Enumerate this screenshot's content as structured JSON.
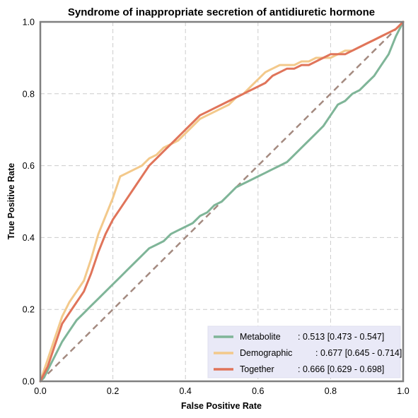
{
  "chart_data": {
    "type": "line",
    "title": "Syndrome of inappropriate secretion of antidiuretic hormone",
    "xlabel": "False Positive Rate",
    "ylabel": "True Positive Rate",
    "xlim": [
      0,
      1
    ],
    "ylim": [
      0,
      1
    ],
    "xticks": [
      "0.0",
      "0.2",
      "0.4",
      "0.6",
      "0.8",
      "1.0"
    ],
    "yticks": [
      "0.0",
      "0.2",
      "0.4",
      "0.6",
      "0.8",
      "1.0"
    ],
    "grid": true,
    "legend_position": "lower-right",
    "reference_line": {
      "x": [
        0,
        1
      ],
      "y": [
        0,
        1
      ],
      "color": "#a48a80"
    },
    "series": [
      {
        "name": "Metabolite",
        "label_suffix": ": 0.513 [0.473 - 0.547]",
        "color": "#7fb598",
        "x": [
          0.0,
          0.01,
          0.02,
          0.03,
          0.04,
          0.06,
          0.08,
          0.1,
          0.12,
          0.14,
          0.16,
          0.18,
          0.2,
          0.22,
          0.24,
          0.26,
          0.28,
          0.3,
          0.32,
          0.34,
          0.36,
          0.38,
          0.4,
          0.42,
          0.44,
          0.46,
          0.48,
          0.5,
          0.52,
          0.54,
          0.56,
          0.58,
          0.6,
          0.62,
          0.64,
          0.66,
          0.68,
          0.7,
          0.72,
          0.74,
          0.76,
          0.78,
          0.8,
          0.82,
          0.84,
          0.86,
          0.88,
          0.9,
          0.92,
          0.94,
          0.96,
          0.98,
          1.0
        ],
        "y": [
          0.0,
          0.01,
          0.03,
          0.05,
          0.07,
          0.11,
          0.14,
          0.17,
          0.19,
          0.21,
          0.23,
          0.25,
          0.27,
          0.29,
          0.31,
          0.33,
          0.35,
          0.37,
          0.38,
          0.39,
          0.41,
          0.42,
          0.43,
          0.44,
          0.46,
          0.47,
          0.49,
          0.5,
          0.52,
          0.54,
          0.55,
          0.56,
          0.57,
          0.58,
          0.59,
          0.6,
          0.61,
          0.63,
          0.65,
          0.67,
          0.69,
          0.71,
          0.74,
          0.77,
          0.78,
          0.8,
          0.81,
          0.83,
          0.85,
          0.88,
          0.91,
          0.96,
          1.0
        ]
      },
      {
        "name": "Demographic",
        "label_suffix": ": 0.677 [0.645 - 0.714]",
        "color": "#f3c98b",
        "x": [
          0.0,
          0.01,
          0.02,
          0.03,
          0.04,
          0.05,
          0.06,
          0.08,
          0.1,
          0.12,
          0.14,
          0.16,
          0.18,
          0.2,
          0.22,
          0.24,
          0.26,
          0.28,
          0.3,
          0.32,
          0.34,
          0.36,
          0.38,
          0.4,
          0.42,
          0.44,
          0.46,
          0.48,
          0.5,
          0.52,
          0.54,
          0.56,
          0.58,
          0.6,
          0.62,
          0.64,
          0.66,
          0.68,
          0.7,
          0.72,
          0.74,
          0.76,
          0.78,
          0.8,
          0.82,
          0.84,
          0.86,
          0.88,
          0.9,
          0.92,
          0.94,
          0.96,
          0.98,
          1.0
        ],
        "y": [
          0.0,
          0.03,
          0.06,
          0.09,
          0.12,
          0.15,
          0.18,
          0.22,
          0.25,
          0.28,
          0.34,
          0.41,
          0.46,
          0.51,
          0.57,
          0.58,
          0.59,
          0.6,
          0.62,
          0.63,
          0.65,
          0.66,
          0.67,
          0.69,
          0.71,
          0.73,
          0.74,
          0.75,
          0.76,
          0.77,
          0.79,
          0.8,
          0.82,
          0.84,
          0.86,
          0.87,
          0.88,
          0.88,
          0.88,
          0.89,
          0.89,
          0.9,
          0.9,
          0.9,
          0.91,
          0.92,
          0.92,
          0.93,
          0.94,
          0.95,
          0.96,
          0.97,
          0.98,
          1.0
        ]
      },
      {
        "name": "Together",
        "label_suffix": ": 0.666 [0.629 - 0.698]",
        "color": "#e0745a",
        "x": [
          0.0,
          0.01,
          0.02,
          0.03,
          0.04,
          0.05,
          0.06,
          0.08,
          0.1,
          0.12,
          0.14,
          0.16,
          0.18,
          0.2,
          0.22,
          0.24,
          0.26,
          0.28,
          0.3,
          0.32,
          0.34,
          0.36,
          0.38,
          0.4,
          0.42,
          0.44,
          0.46,
          0.48,
          0.5,
          0.52,
          0.54,
          0.56,
          0.58,
          0.6,
          0.62,
          0.64,
          0.66,
          0.68,
          0.7,
          0.72,
          0.74,
          0.76,
          0.78,
          0.8,
          0.82,
          0.84,
          0.86,
          0.88,
          0.9,
          0.92,
          0.94,
          0.96,
          0.98,
          1.0
        ],
        "y": [
          0.0,
          0.02,
          0.04,
          0.07,
          0.1,
          0.13,
          0.16,
          0.19,
          0.22,
          0.25,
          0.3,
          0.36,
          0.41,
          0.45,
          0.48,
          0.51,
          0.54,
          0.57,
          0.6,
          0.62,
          0.64,
          0.66,
          0.68,
          0.7,
          0.72,
          0.74,
          0.75,
          0.76,
          0.77,
          0.78,
          0.79,
          0.8,
          0.81,
          0.82,
          0.83,
          0.85,
          0.86,
          0.87,
          0.87,
          0.88,
          0.88,
          0.89,
          0.9,
          0.91,
          0.91,
          0.91,
          0.92,
          0.93,
          0.94,
          0.95,
          0.96,
          0.97,
          0.98,
          1.0
        ]
      }
    ]
  }
}
